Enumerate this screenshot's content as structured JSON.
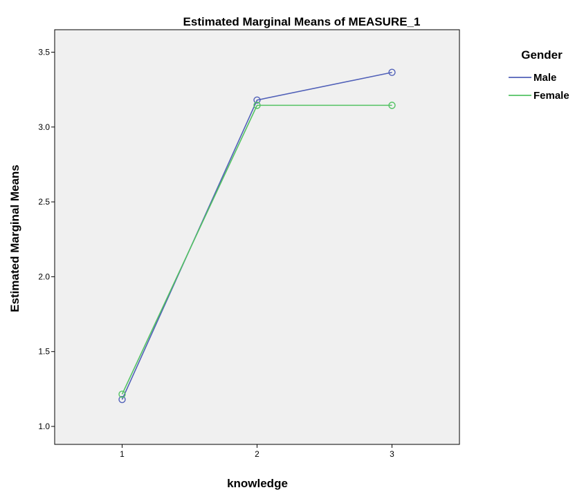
{
  "chart_data": {
    "type": "line",
    "title": "Estimated Marginal Means of MEASURE_1",
    "xlabel": "knowledge",
    "ylabel": "Estimated Marginal Means",
    "categories": [
      "1",
      "2",
      "3"
    ],
    "ylim": [
      0.88,
      3.65
    ],
    "yticks": [
      1.0,
      1.5,
      2.0,
      2.5,
      3.0,
      3.5
    ],
    "ytick_labels": [
      "1.0",
      "1.5",
      "2.0",
      "2.5",
      "3.0",
      "3.5"
    ],
    "grid": false,
    "legend": {
      "title": "Gender",
      "placement": "top-right-outside"
    },
    "series": [
      {
        "name": "Male",
        "color": "#5060b8",
        "values": [
          1.18,
          3.18,
          3.365
        ]
      },
      {
        "name": "Female",
        "color": "#52c262",
        "values": [
          1.215,
          3.145,
          3.145
        ]
      }
    ],
    "plot_background": "#f0f0f0",
    "marker": "open-circle"
  }
}
